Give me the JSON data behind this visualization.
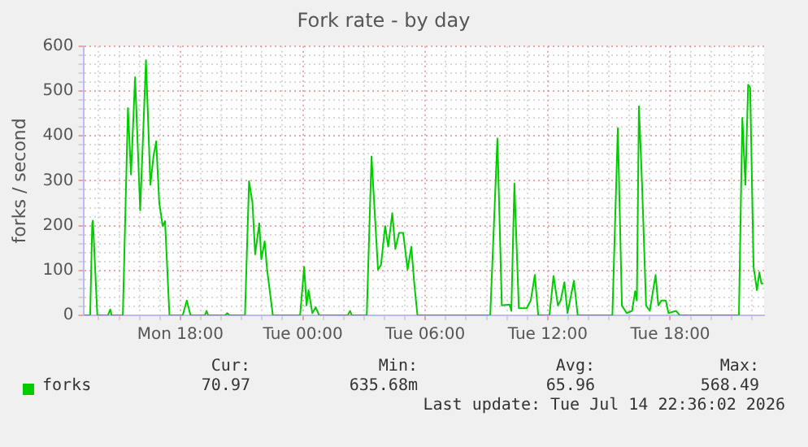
{
  "chart_data": {
    "type": "line",
    "title": "Fork rate - by day",
    "ylabel": "forks / second",
    "xlim": [
      "2026-07-13T13:15",
      "2026-07-14T22:36"
    ],
    "ylim": [
      0,
      600
    ],
    "xticks": [
      {
        "value": "2026-07-13T14:00",
        "label": null
      },
      {
        "value": "2026-07-13T15:00",
        "label": null
      },
      {
        "value": "2026-07-13T16:00",
        "label": null
      },
      {
        "value": "2026-07-13T17:00",
        "label": null
      },
      {
        "value": "2026-07-13T18:00",
        "label": "Mon 18:00"
      },
      {
        "value": "2026-07-13T19:00",
        "label": null
      },
      {
        "value": "2026-07-13T20:00",
        "label": null
      },
      {
        "value": "2026-07-13T21:00",
        "label": null
      },
      {
        "value": "2026-07-13T22:00",
        "label": null
      },
      {
        "value": "2026-07-13T23:00",
        "label": null
      },
      {
        "value": "2026-07-14T00:00",
        "label": "Tue 00:00"
      },
      {
        "value": "2026-07-14T01:00",
        "label": null
      },
      {
        "value": "2026-07-14T02:00",
        "label": null
      },
      {
        "value": "2026-07-14T03:00",
        "label": null
      },
      {
        "value": "2026-07-14T04:00",
        "label": null
      },
      {
        "value": "2026-07-14T05:00",
        "label": null
      },
      {
        "value": "2026-07-14T06:00",
        "label": "Tue 06:00"
      },
      {
        "value": "2026-07-14T07:00",
        "label": null
      },
      {
        "value": "2026-07-14T08:00",
        "label": null
      },
      {
        "value": "2026-07-14T09:00",
        "label": null
      },
      {
        "value": "2026-07-14T10:00",
        "label": null
      },
      {
        "value": "2026-07-14T11:00",
        "label": null
      },
      {
        "value": "2026-07-14T12:00",
        "label": "Tue 12:00"
      },
      {
        "value": "2026-07-14T13:00",
        "label": null
      },
      {
        "value": "2026-07-14T14:00",
        "label": null
      },
      {
        "value": "2026-07-14T15:00",
        "label": null
      },
      {
        "value": "2026-07-14T16:00",
        "label": null
      },
      {
        "value": "2026-07-14T17:00",
        "label": null
      },
      {
        "value": "2026-07-14T18:00",
        "label": "Tue 18:00"
      },
      {
        "value": "2026-07-14T19:00",
        "label": null
      },
      {
        "value": "2026-07-14T20:00",
        "label": null
      },
      {
        "value": "2026-07-14T21:00",
        "label": null
      },
      {
        "value": "2026-07-14T22:00",
        "label": null
      }
    ],
    "yticks": [
      0,
      {
        "value": 20,
        "label": null
      },
      {
        "value": 40,
        "label": null
      },
      {
        "value": 60,
        "label": null
      },
      {
        "value": 80,
        "label": null
      },
      100,
      {
        "value": 120,
        "label": null
      },
      {
        "value": 140,
        "label": null
      },
      {
        "value": 160,
        "label": null
      },
      {
        "value": 180,
        "label": null
      },
      200,
      {
        "value": 220,
        "label": null
      },
      {
        "value": 240,
        "label": null
      },
      {
        "value": 260,
        "label": null
      },
      {
        "value": 280,
        "label": null
      },
      300,
      {
        "value": 320,
        "label": null
      },
      {
        "value": 340,
        "label": null
      },
      {
        "value": 360,
        "label": null
      },
      {
        "value": 380,
        "label": null
      },
      400,
      {
        "value": 420,
        "label": null
      },
      {
        "value": 440,
        "label": null
      },
      {
        "value": 460,
        "label": null
      },
      {
        "value": 480,
        "label": null
      },
      500,
      {
        "value": 520,
        "label": null
      },
      {
        "value": 540,
        "label": null
      },
      {
        "value": 560,
        "label": null
      },
      {
        "value": 580,
        "label": null
      },
      600
    ],
    "grid": true,
    "legend": "bottom left",
    "marker": "none",
    "line_style": "solid",
    "x": [
      "2026-07-13T13:18",
      "2026-07-13T13:35",
      "2026-07-13T13:41",
      "2026-07-13T13:43",
      "2026-07-13T13:56",
      "2026-07-13T14:27",
      "2026-07-13T14:34",
      "2026-07-13T14:38",
      "2026-07-13T15:11",
      "2026-07-13T15:26",
      "2026-07-13T15:35",
      "2026-07-13T15:47",
      "2026-07-13T16:02",
      "2026-07-13T16:19",
      "2026-07-13T16:32",
      "2026-07-13T16:41",
      "2026-07-13T16:49",
      "2026-07-13T16:58",
      "2026-07-13T17:08",
      "2026-07-13T17:15",
      "2026-07-13T17:28",
      "2026-07-13T18:07",
      "2026-07-13T18:19",
      "2026-07-13T18:30",
      "2026-07-13T19:12",
      "2026-07-13T19:17",
      "2026-07-13T19:22",
      "2026-07-13T20:12",
      "2026-07-13T20:18",
      "2026-07-13T20:24",
      "2026-07-13T21:10",
      "2026-07-13T21:22",
      "2026-07-13T21:32",
      "2026-07-13T21:40",
      "2026-07-13T21:52",
      "2026-07-13T21:58",
      "2026-07-13T22:08",
      "2026-07-13T22:15",
      "2026-07-13T22:32",
      "2026-07-13T23:52",
      "2026-07-14T00:04",
      "2026-07-14T00:11",
      "2026-07-14T00:17",
      "2026-07-14T00:28",
      "2026-07-14T00:38",
      "2026-07-14T00:48",
      "2026-07-14T02:12",
      "2026-07-14T02:19",
      "2026-07-14T02:24",
      "2026-07-14T03:08",
      "2026-07-14T03:22",
      "2026-07-14T03:41",
      "2026-07-14T03:50",
      "2026-07-14T04:02",
      "2026-07-14T04:11",
      "2026-07-14T04:23",
      "2026-07-14T04:32",
      "2026-07-14T04:43",
      "2026-07-14T04:55",
      "2026-07-14T05:08",
      "2026-07-14T05:19",
      "2026-07-14T05:28",
      "2026-07-14T05:37",
      "2026-07-14T09:11",
      "2026-07-14T09:32",
      "2026-07-14T09:45",
      "2026-07-14T10:08",
      "2026-07-14T10:13",
      "2026-07-14T10:22",
      "2026-07-14T10:35",
      "2026-07-14T10:58",
      "2026-07-14T11:10",
      "2026-07-14T11:22",
      "2026-07-14T11:32",
      "2026-07-14T12:05",
      "2026-07-14T12:17",
      "2026-07-14T12:30",
      "2026-07-14T12:38",
      "2026-07-14T12:49",
      "2026-07-14T12:58",
      "2026-07-14T13:17",
      "2026-07-14T13:28",
      "2026-07-14T15:10",
      "2026-07-14T15:26",
      "2026-07-14T15:38",
      "2026-07-14T15:52",
      "2026-07-14T16:08",
      "2026-07-14T16:17",
      "2026-07-14T16:22",
      "2026-07-14T16:28",
      "2026-07-14T16:37",
      "2026-07-14T16:49",
      "2026-07-14T17:00",
      "2026-07-14T17:17",
      "2026-07-14T17:25",
      "2026-07-14T17:34",
      "2026-07-14T17:47",
      "2026-07-14T17:55",
      "2026-07-14T18:17",
      "2026-07-14T18:28",
      "2026-07-14T21:22",
      "2026-07-14T21:32",
      "2026-07-14T21:41",
      "2026-07-14T21:49",
      "2026-07-14T21:55",
      "2026-07-14T22:05",
      "2026-07-14T22:15",
      "2026-07-14T22:22",
      "2026-07-14T22:28",
      "2026-07-14T22:34"
    ],
    "series": [
      {
        "name": "forks",
        "color": "#00cc00",
        "values": [
          0,
          0,
          205,
          211,
          0,
          0,
          13,
          0,
          0,
          462,
          314,
          531,
          234,
          569,
          291,
          354,
          388,
          251,
          199,
          210,
          0,
          0,
          33,
          0,
          0,
          10,
          0,
          0,
          5,
          0,
          0,
          299,
          251,
          136,
          205,
          125,
          165,
          102,
          0,
          0,
          108,
          22,
          56,
          5,
          18,
          0,
          0,
          10,
          0,
          0,
          354,
          102,
          113,
          199,
          153,
          228,
          148,
          184,
          184,
          102,
          153,
          68,
          0,
          0,
          394,
          22,
          24,
          10,
          294,
          16,
          16,
          33,
          90,
          0,
          0,
          88,
          22,
          33,
          74,
          5,
          77,
          0,
          0,
          417,
          22,
          5,
          10,
          54,
          33,
          466,
          297,
          22,
          10,
          90,
          22,
          33,
          33,
          5,
          10,
          0,
          0,
          440,
          291,
          514,
          508,
          108,
          56,
          96,
          71,
          71
        ]
      }
    ],
    "annotations": [
      "Cur:",
      "Min:",
      "Avg:",
      "Max:",
      "70.97",
      "635.68m",
      "65.96",
      "568.49",
      "Last update: Tue Jul 14 22:36:02 2026"
    ]
  }
}
